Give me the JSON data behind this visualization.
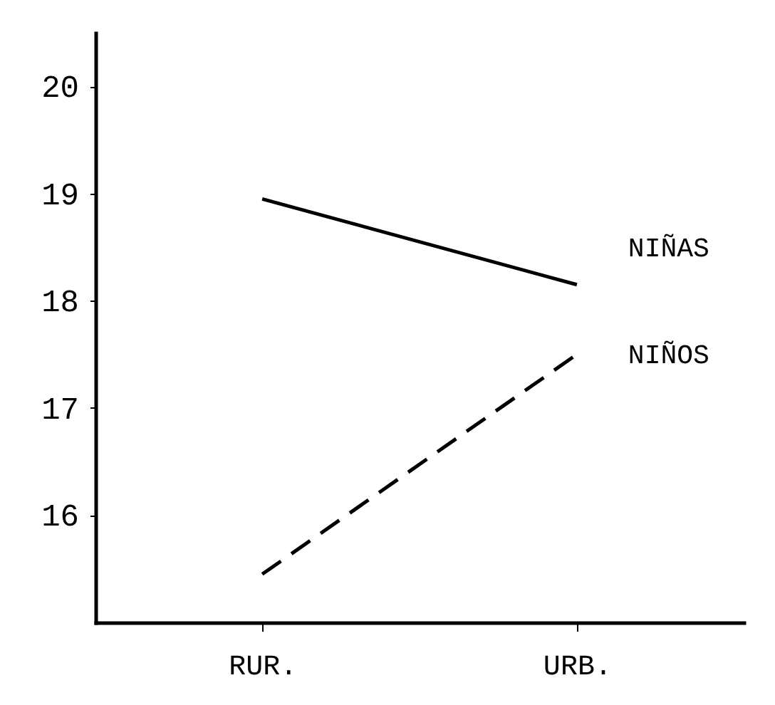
{
  "chart_data": {
    "type": "line",
    "categories": [
      "RUR.",
      "URB."
    ],
    "series": [
      {
        "name": "NIÑAS",
        "color": "#000000",
        "line_style": "solid",
        "values": [
          18.95,
          18.15
        ]
      },
      {
        "name": "NIÑOS",
        "color": "#000000",
        "line_style": "dashed",
        "values": [
          15.45,
          17.5
        ]
      }
    ],
    "ylim": [
      15,
      20.5
    ],
    "yticks": [
      16,
      17,
      18,
      19,
      20
    ],
    "grid": false,
    "marker": "none"
  }
}
